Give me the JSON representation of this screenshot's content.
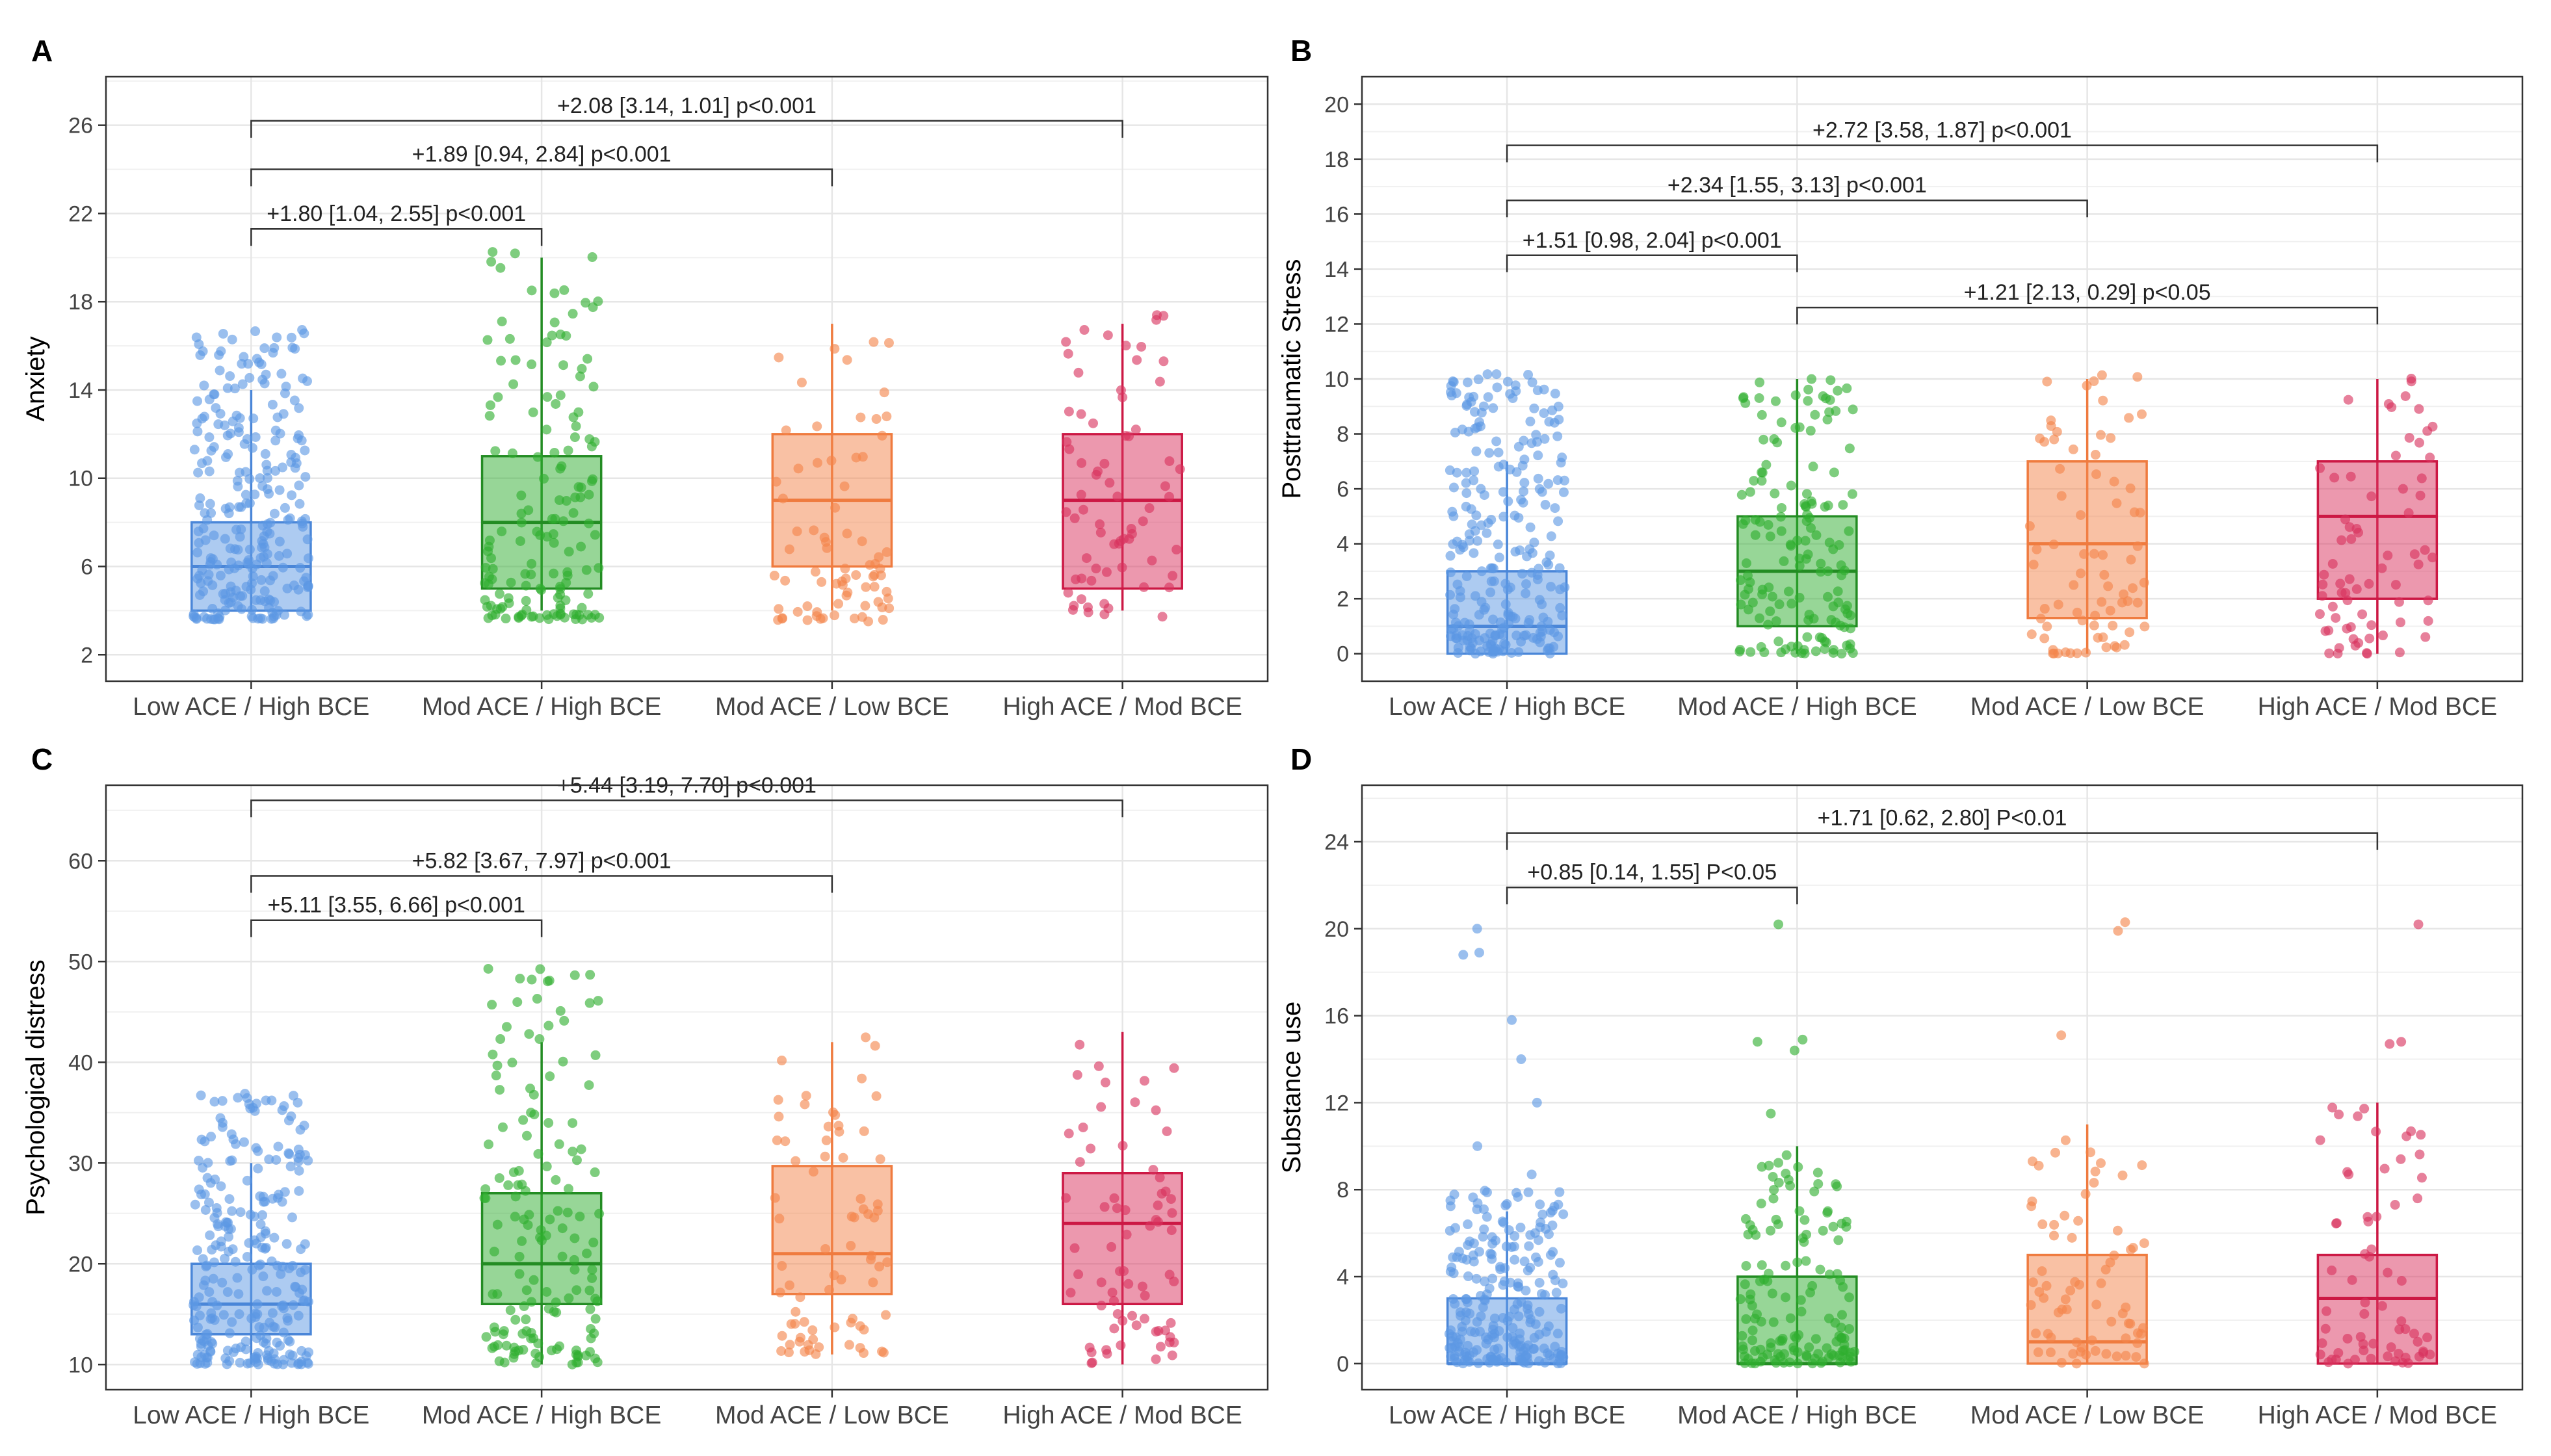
{
  "colors": {
    "groups": [
      "#5c97e3",
      "#2fae2f",
      "#f4844a",
      "#d9325e"
    ],
    "groups_dark": [
      "#4a86d8",
      "#238c23",
      "#ef7b3f",
      "#cc1844"
    ],
    "grid": "#e6e6e6",
    "axis": "#333333",
    "text": "#222222"
  },
  "chart_data": [
    {
      "type": "boxplot",
      "panel_label": "A",
      "ylabel": "Anxiety",
      "categories": [
        "Low ACE / High BCE",
        "Mod ACE / High BCE",
        "Mod ACE / Low BCE",
        "High ACE / Mod BCE"
      ],
      "ylim": [
        0.8,
        28.2
      ],
      "yticks": [
        2,
        6,
        10,
        14,
        18,
        22,
        26
      ],
      "boxes": [
        {
          "whisker_low": 4,
          "q1": 4,
          "median": 6,
          "q3": 8,
          "whisker_high": 14,
          "jitter_min": 3.6,
          "jitter_max": 16.8,
          "n": 260,
          "seed": 11
        },
        {
          "whisker_low": 4,
          "q1": 5,
          "median": 8,
          "q3": 11,
          "whisker_high": 20,
          "jitter_min": 3.6,
          "jitter_max": 20.3,
          "n": 150,
          "seed": 23
        },
        {
          "whisker_low": 4,
          "q1": 6,
          "median": 9,
          "q3": 12,
          "whisker_high": 17,
          "jitter_min": 3.5,
          "jitter_max": 17.4,
          "n": 75,
          "seed": 37
        },
        {
          "whisker_low": 4,
          "q1": 5,
          "median": 9,
          "q3": 12,
          "whisker_high": 17,
          "jitter_min": 3.7,
          "jitter_max": 17.4,
          "n": 70,
          "seed": 51
        }
      ],
      "comparisons": [
        {
          "from": 0,
          "to": 1,
          "y": 21.3,
          "label": "+1.80 [1.04,  2.55] p<0.001"
        },
        {
          "from": 0,
          "to": 2,
          "y": 24.0,
          "label": "+1.89 [0.94,  2.84] p<0.001"
        },
        {
          "from": 0,
          "to": 3,
          "y": 26.2,
          "label": "+2.08 [3.14, 1.01] p<0.001"
        }
      ]
    },
    {
      "type": "boxplot",
      "panel_label": "B",
      "ylabel": "Posttraumatic Stress",
      "categories": [
        "Low ACE / High BCE",
        "Mod ACE / High BCE",
        "Mod ACE / Low BCE",
        "High ACE / Mod BCE"
      ],
      "ylim": [
        -1,
        21
      ],
      "yticks": [
        0,
        2,
        4,
        6,
        8,
        10,
        12,
        14,
        16,
        18,
        20
      ],
      "boxes": [
        {
          "whisker_low": 0,
          "q1": 0,
          "median": 1,
          "q3": 3,
          "whisker_high": 7,
          "jitter_min": 0,
          "jitter_max": 10.2,
          "n": 250,
          "seed": 13
        },
        {
          "whisker_low": 0,
          "q1": 1,
          "median": 3,
          "q3": 5,
          "whisker_high": 10,
          "jitter_min": 0,
          "jitter_max": 10.4,
          "n": 150,
          "seed": 29
        },
        {
          "whisker_low": 0,
          "q1": 1.3,
          "median": 4,
          "q3": 7,
          "whisker_high": 10,
          "jitter_min": 0,
          "jitter_max": 10.3,
          "n": 75,
          "seed": 41
        },
        {
          "whisker_low": 0,
          "q1": 2,
          "median": 5,
          "q3": 7,
          "whisker_high": 10,
          "jitter_min": 0,
          "jitter_max": 10.4,
          "n": 70,
          "seed": 57
        }
      ],
      "comparisons": [
        {
          "from": 1,
          "to": 3,
          "y": 12.6,
          "label": "+1.21 [2.13, 0.29] p<0.05"
        },
        {
          "from": 0,
          "to": 1,
          "y": 14.5,
          "label": "+1.51 [0.98,  2.04] p<0.001"
        },
        {
          "from": 0,
          "to": 2,
          "y": 16.5,
          "label": "+2.34 [1.55,  3.13] p<0.001"
        },
        {
          "from": 0,
          "to": 3,
          "y": 18.5,
          "label": "+2.72 [3.58, 1.87] p<0.001"
        }
      ]
    },
    {
      "type": "boxplot",
      "panel_label": "C",
      "ylabel": "Psychological distress",
      "categories": [
        "Low ACE / High BCE",
        "Mod ACE / High BCE",
        "Mod ACE / Low BCE",
        "High ACE / Mod BCE"
      ],
      "ylim": [
        7.5,
        67.5
      ],
      "yticks": [
        10,
        20,
        30,
        40,
        50,
        60
      ],
      "boxes": [
        {
          "whisker_low": 10,
          "q1": 13,
          "median": 16,
          "q3": 20,
          "whisker_high": 30,
          "jitter_min": 10,
          "jitter_max": 37,
          "n": 260,
          "seed": 17
        },
        {
          "whisker_low": 10,
          "q1": 16,
          "median": 20,
          "q3": 27,
          "whisker_high": 42,
          "jitter_min": 10,
          "jitter_max": 49.5,
          "n": 150,
          "seed": 31
        },
        {
          "whisker_low": 11,
          "q1": 17,
          "median": 21,
          "q3": 29.7,
          "whisker_high": 42,
          "jitter_min": 11,
          "jitter_max": 42.5,
          "n": 75,
          "seed": 43
        },
        {
          "whisker_low": 10,
          "q1": 16,
          "median": 24,
          "q3": 29,
          "whisker_high": 43,
          "jitter_min": 10,
          "jitter_max": 43,
          "n": 70,
          "seed": 61
        }
      ],
      "comparisons": [
        {
          "from": 0,
          "to": 1,
          "y": 54.1,
          "label": "+5.11 [3.55,  6.66] p<0.001"
        },
        {
          "from": 0,
          "to": 2,
          "y": 58.5,
          "label": "+5.82 [3.67, 7.97] p<0.001"
        },
        {
          "from": 0,
          "to": 3,
          "y": 66.0,
          "label": "+5.44 [3.19, 7.70] p<0.001"
        }
      ]
    },
    {
      "type": "boxplot",
      "panel_label": "D",
      "ylabel": "Substance use",
      "categories": [
        "Low ACE / High BCE",
        "Mod ACE / High BCE",
        "Mod ACE / Low BCE",
        "High ACE / Mod BCE"
      ],
      "ylim": [
        -1.2,
        26.6
      ],
      "yticks": [
        0,
        4,
        8,
        12,
        16,
        20,
        24
      ],
      "boxes": [
        {
          "whisker_low": 0,
          "q1": 0,
          "median": 0,
          "q3": 3,
          "whisker_high": 7,
          "jitter_min": 0,
          "jitter_max": 8,
          "n": 230,
          "seed": 19,
          "outliers": [
            8.7,
            10,
            12,
            14,
            15.8,
            18.8,
            18.9,
            20
          ]
        },
        {
          "whisker_low": 0,
          "q1": 0,
          "median": 0,
          "q3": 4,
          "whisker_high": 10,
          "jitter_min": 0,
          "jitter_max": 10,
          "n": 140,
          "seed": 33,
          "outliers": [
            11.5,
            14.4,
            14.8,
            14.9,
            20.2
          ]
        },
        {
          "whisker_low": 0,
          "q1": 0,
          "median": 1,
          "q3": 5,
          "whisker_high": 11,
          "jitter_min": 0,
          "jitter_max": 11,
          "n": 70,
          "seed": 47,
          "outliers": [
            15.1,
            19.9,
            20.3
          ]
        },
        {
          "whisker_low": 0,
          "q1": 0,
          "median": 3,
          "q3": 5,
          "whisker_high": 12,
          "jitter_min": 0,
          "jitter_max": 12,
          "n": 65,
          "seed": 67,
          "outliers": [
            14.7,
            14.8,
            20.2
          ]
        }
      ],
      "comparisons": [
        {
          "from": 0,
          "to": 1,
          "y": 21.9,
          "label": "+0.85 [0.14,  1.55] P<0.05"
        },
        {
          "from": 0,
          "to": 3,
          "y": 24.4,
          "label": "+1.71 [0.62, 2.80] P<0.01"
        }
      ]
    }
  ]
}
